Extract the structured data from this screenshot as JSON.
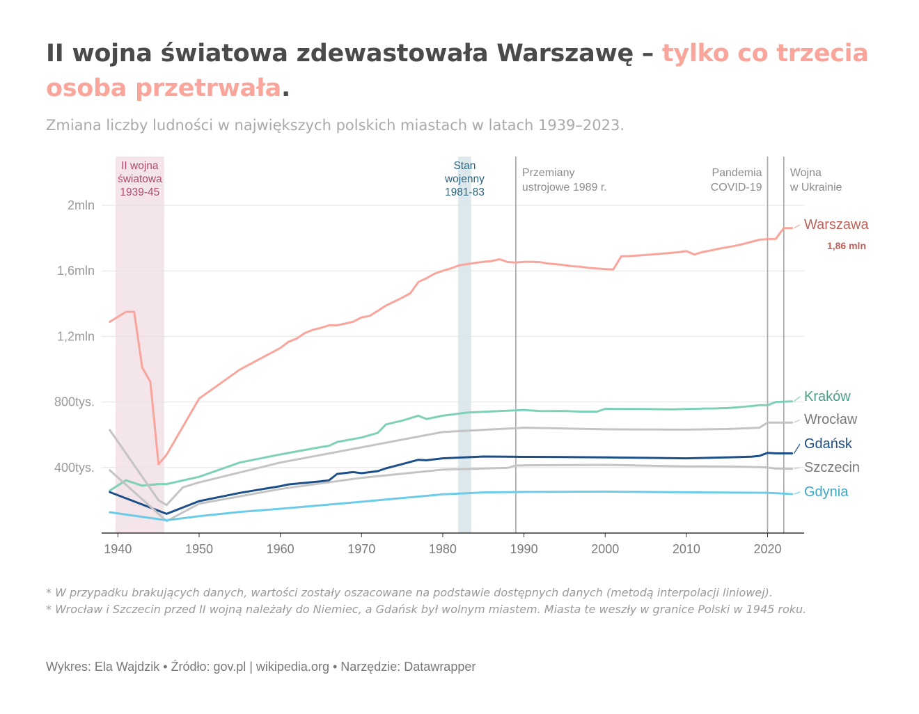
{
  "header": {
    "title_part1": "II wojna światowa zdewastowała Warszawę – ",
    "title_highlight": "tylko co trzecia osoba przetrwała",
    "title_end": ".",
    "subtitle": "Zmiana liczby ludności w największych polskich miastach w latach 1939–2023."
  },
  "notes": [
    "* W przypadku brakujących danych, wartości zostały oszacowane na podstawie dostępnych danych (metodą interpolacji liniowej).",
    "* Wrocław i Szczecin przed II wojną należały do Niemiec, a Gdańsk był wolnym miastem. Miasta te weszły w granice Polski w 1945 roku."
  ],
  "credit": "Wykres: Ela Wajdzik • Źródło: gov.pl | wikipedia.org • Narzędzie: Datawrapper",
  "chart_data": {
    "type": "line",
    "title": "",
    "xlabel": "",
    "ylabel": "",
    "xlim": [
      1938,
      2024.5
    ],
    "ylim": [
      0,
      2000000
    ],
    "grid": true,
    "x_ticks": [
      1940,
      1950,
      1960,
      1970,
      1980,
      1990,
      2000,
      2010,
      2020
    ],
    "y_ticks": [
      {
        "value": 400000,
        "label": "400tys."
      },
      {
        "value": 800000,
        "label": "800tys."
      },
      {
        "value": 1200000,
        "label": "1,2mln"
      },
      {
        "value": 1600000,
        "label": "1,6mln"
      },
      {
        "value": 2000000,
        "label": "2mln"
      }
    ],
    "bands": [
      {
        "from": 1939.7,
        "to": 1945.7,
        "label_lines": [
          "II wojna",
          "światowa",
          "1939-45"
        ],
        "color": "#f3e5ea",
        "text_color": "#b04a6e"
      },
      {
        "from": 1981.9,
        "to": 1983.5,
        "label_lines": [
          "Stan",
          "wojenny",
          "1981-83"
        ],
        "color": "#dde8ec",
        "text_color": "#2b6580"
      }
    ],
    "vlines": [
      {
        "x": 1989,
        "label_lines": [
          "Przemiany",
          "ustrojowe 1989 r."
        ],
        "anchor": "start"
      },
      {
        "x": 2020,
        "label_lines": [
          "Pandemia",
          "COVID-19"
        ],
        "anchor": "end"
      },
      {
        "x": 2022,
        "label_lines": [
          "Wojna",
          "w Ukrainie"
        ],
        "anchor": "start"
      }
    ],
    "series": [
      {
        "name": "Warszawa",
        "color": "#f9a59b",
        "label_color": "#c0605a",
        "annotation": "1,86 mln",
        "x": [
          1939,
          1941,
          1941.5,
          1942,
          1943,
          1944,
          1945,
          1946,
          1950,
          1955,
          1960,
          1961,
          1962,
          1963,
          1964,
          1965,
          1966,
          1967,
          1968,
          1969,
          1970,
          1971,
          1972,
          1973,
          1974,
          1975,
          1976,
          1977,
          1978,
          1979,
          1980,
          1981,
          1982,
          1983,
          1984,
          1985,
          1986,
          1987,
          1988,
          1989,
          1990,
          1991,
          1992,
          1993,
          1994,
          1995,
          1996,
          1997,
          1998,
          1999,
          2000,
          2001,
          2002,
          2003,
          2005,
          2008,
          2009,
          2010,
          2011,
          2012,
          2013,
          2014,
          2015,
          2016,
          2017,
          2018,
          2019,
          2020,
          2021,
          2022,
          2023
        ],
        "y": [
          1289000,
          1350000,
          1350000,
          1350000,
          1010000,
          922000,
          420000,
          478000,
          821000,
          997000,
          1129000,
          1167000,
          1187000,
          1220000,
          1240000,
          1252000,
          1268000,
          1268000,
          1278000,
          1290000,
          1316000,
          1325000,
          1356000,
          1388000,
          1412000,
          1436000,
          1463000,
          1532000,
          1555000,
          1583000,
          1600000,
          1615000,
          1633000,
          1641000,
          1649000,
          1655000,
          1660000,
          1671000,
          1654000,
          1651000,
          1655000,
          1655000,
          1653000,
          1644000,
          1640000,
          1635000,
          1628000,
          1625000,
          1618000,
          1615000,
          1610000,
          1609000,
          1689000,
          1690000,
          1697000,
          1709000,
          1714000,
          1720000,
          1700000,
          1715000,
          1724000,
          1735000,
          1744000,
          1753000,
          1764000,
          1777000,
          1790000,
          1794000,
          1795000,
          1861000,
          1861000
        ]
      },
      {
        "name": "Kraków",
        "color": "#7ed1b8",
        "label_color": "#4c9f87",
        "x": [
          1939,
          1941,
          1943,
          1945,
          1946,
          1950,
          1955,
          1960,
          1965,
          1966,
          1967,
          1970,
          1972,
          1973,
          1975,
          1977,
          1978,
          1980,
          1983,
          1985,
          1990,
          1992,
          1995,
          1997,
          1998,
          1999,
          2000,
          2005,
          2008,
          2010,
          2015,
          2018,
          2019,
          2020,
          2021,
          2023
        ],
        "y": [
          259000,
          322000,
          289000,
          299000,
          299000,
          343000,
          430000,
          480000,
          525000,
          532000,
          556000,
          583000,
          611000,
          663000,
          686000,
          716000,
          696000,
          716000,
          735000,
          740000,
          751000,
          744000,
          745000,
          741000,
          741000,
          741000,
          758000,
          757000,
          755000,
          757000,
          762000,
          775000,
          780000,
          780000,
          800000,
          804000
        ]
      },
      {
        "name": "Wrocław",
        "color": "#c4c4c4",
        "label_color": "#7a7a7a",
        "x": [
          1939,
          1945,
          1946,
          1948,
          1950,
          1960,
          1970,
          1980,
          1990,
          2000,
          2010,
          2015,
          2019,
          2020,
          2023
        ],
        "y": [
          629000,
          200000,
          171000,
          279000,
          309000,
          430000,
          523000,
          617000,
          643000,
          633000,
          631000,
          635000,
          643000,
          674000,
          674000
        ]
      },
      {
        "name": "Gdańsk",
        "color": "#1c4f8a",
        "label_color": "#1c4f8a",
        "x": [
          1939,
          1946,
          1950,
          1955,
          1960,
          1961,
          1965,
          1966,
          1967,
          1969,
          1970,
          1972,
          1973,
          1975,
          1977,
          1978,
          1980,
          1985,
          1988,
          1990,
          1995,
          2000,
          2005,
          2010,
          2015,
          2018,
          2019,
          2020,
          2021,
          2023
        ],
        "y": [
          250000,
          117000,
          195000,
          245000,
          286000,
          297000,
          316000,
          322000,
          361000,
          372000,
          365000,
          378000,
          395000,
          421000,
          447000,
          444000,
          456000,
          467000,
          466000,
          465000,
          464000,
          462000,
          459000,
          456000,
          462000,
          466000,
          471000,
          489000,
          486000,
          486000
        ]
      },
      {
        "name": "Szczecin",
        "color": "#c4c4c4",
        "label_color": "#7a7a7a",
        "x": [
          1939,
          1946,
          1950,
          1960,
          1970,
          1980,
          1988,
          1989,
          1990,
          2000,
          2010,
          2015,
          2019,
          2020,
          2021,
          2023
        ],
        "y": [
          383000,
          73000,
          179000,
          269000,
          337000,
          387000,
          398000,
          412000,
          413000,
          416000,
          407000,
          406000,
          402000,
          400000,
          393000,
          392000
        ]
      },
      {
        "name": "Gdynia",
        "color": "#6ccbe8",
        "label_color": "#3ba6c6",
        "x": [
          1939,
          1946,
          1950,
          1955,
          1960,
          1970,
          1980,
          1985,
          1990,
          2000,
          2010,
          2020,
          2023
        ],
        "y": [
          127000,
          78000,
          103000,
          129000,
          148000,
          191000,
          236000,
          248000,
          251000,
          253000,
          249000,
          246000,
          238000
        ]
      }
    ]
  }
}
